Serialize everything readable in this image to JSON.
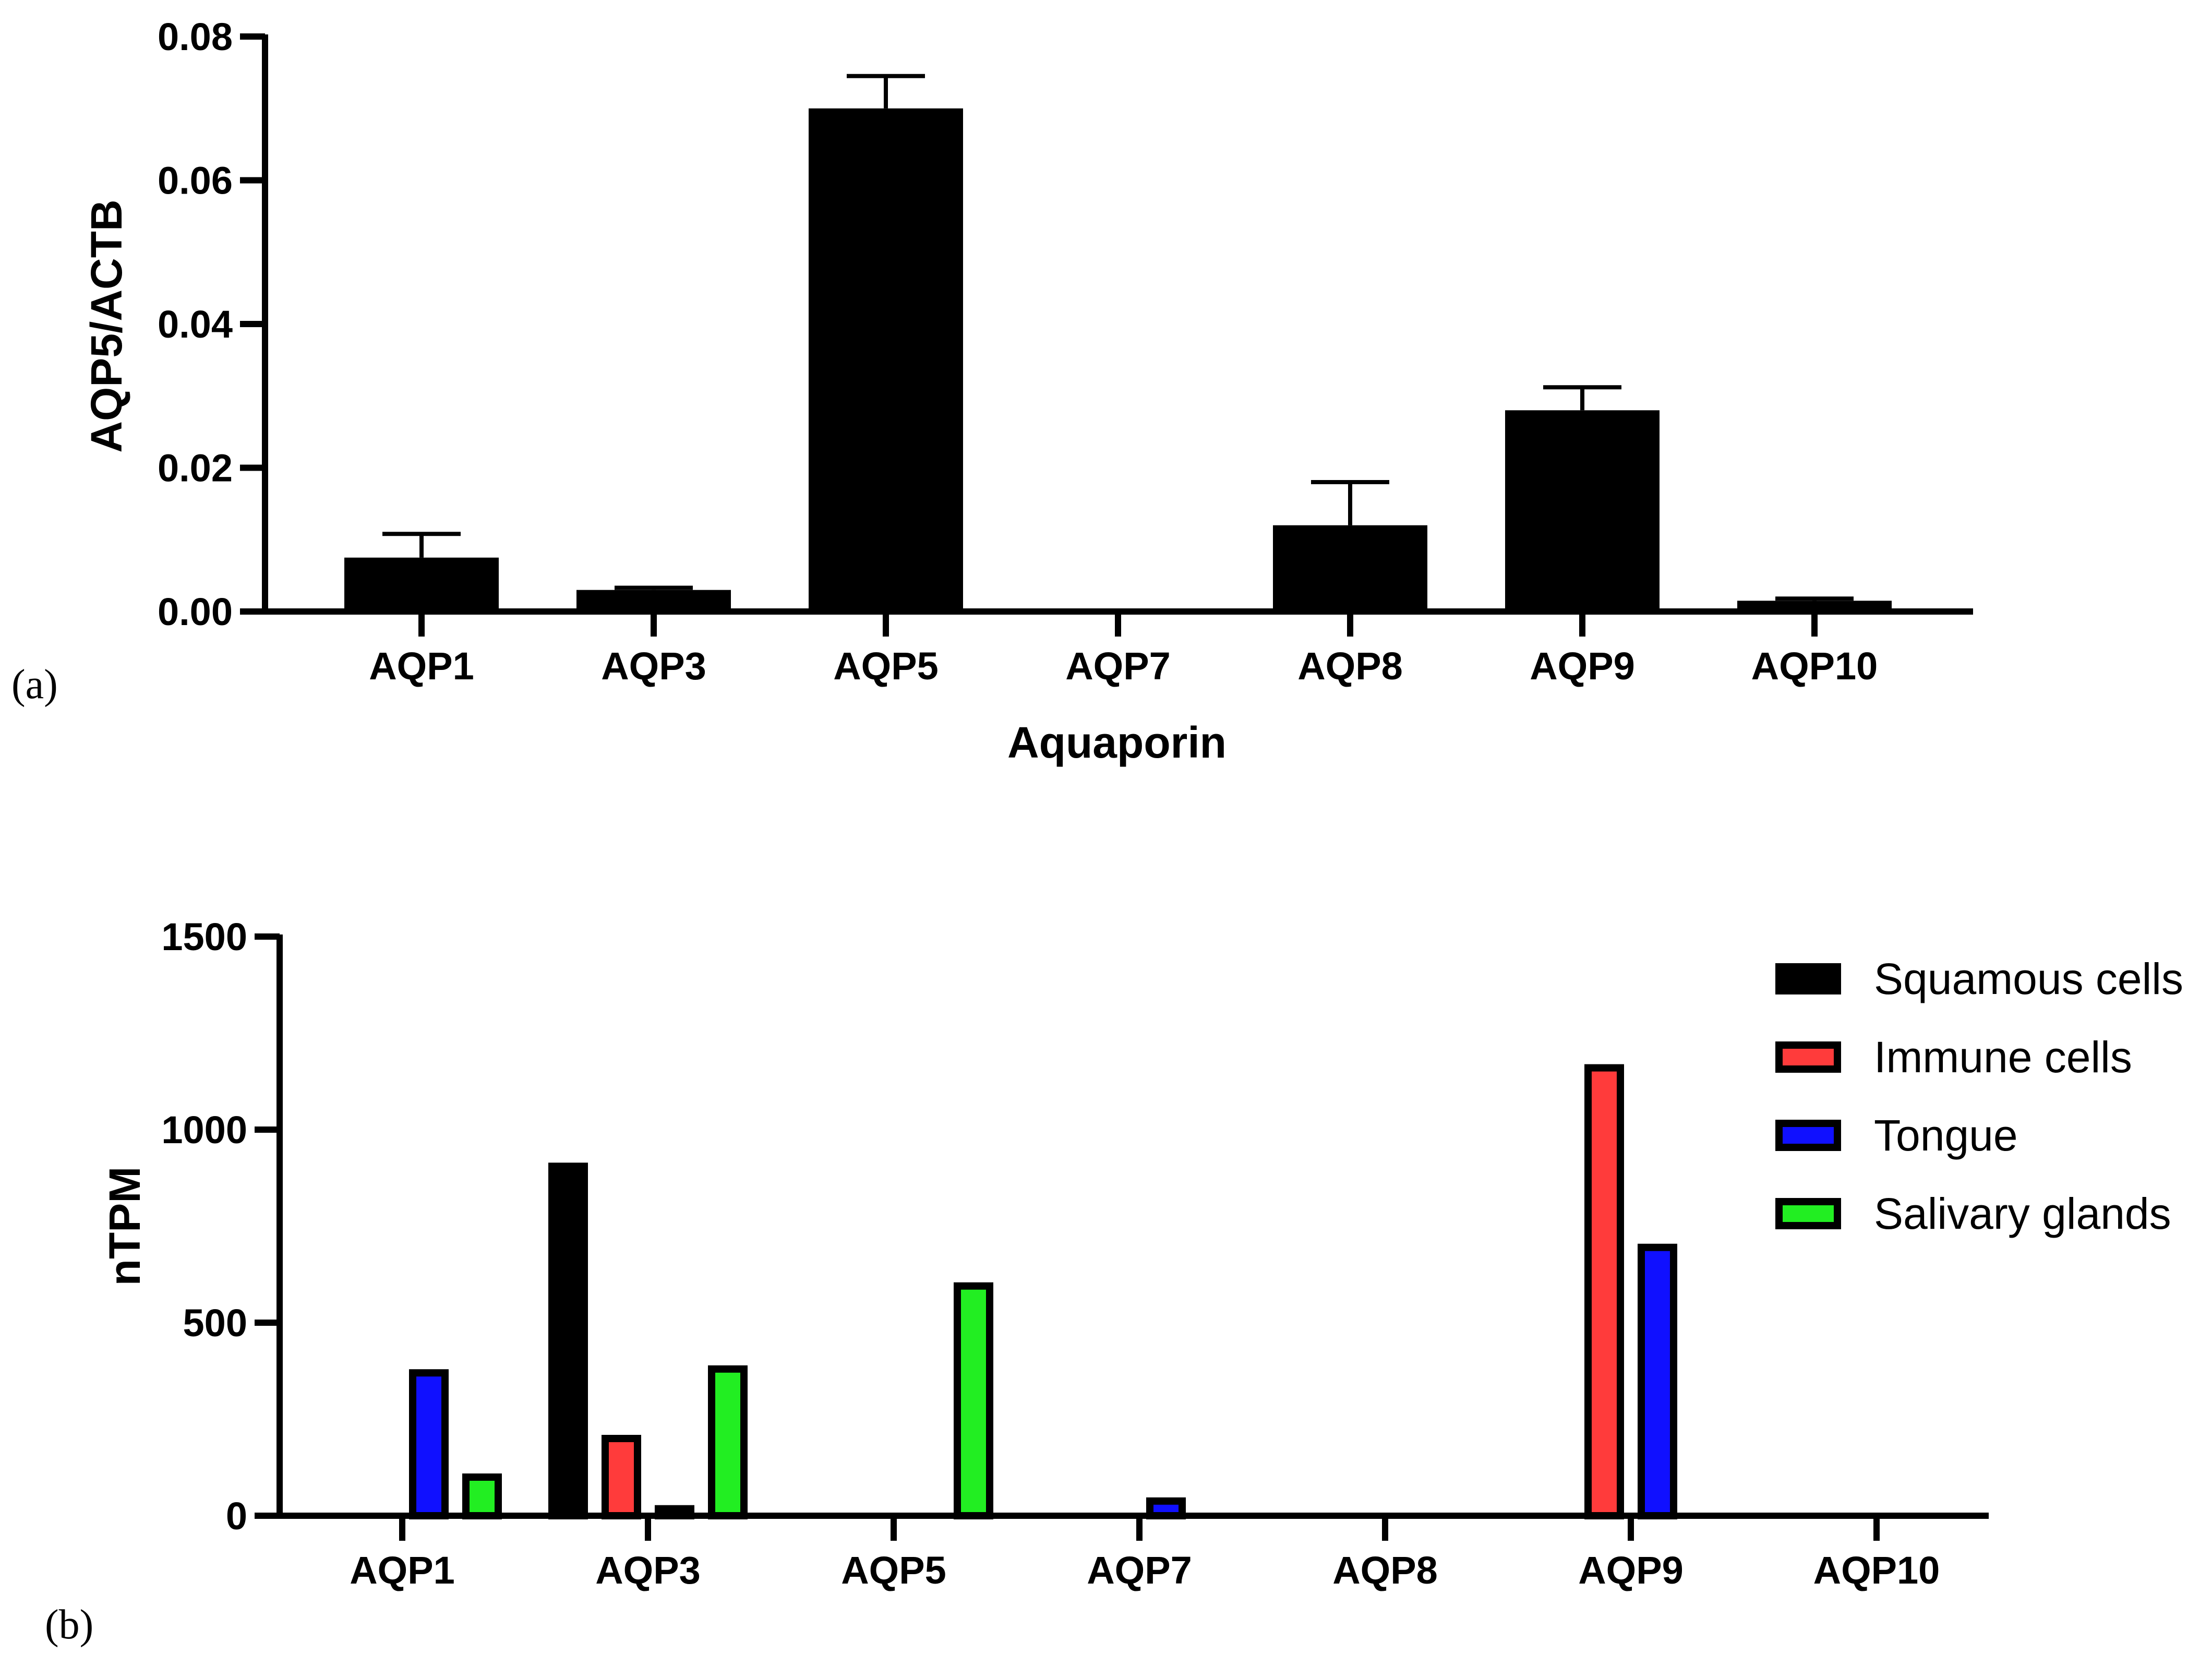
{
  "chart_data": [
    {
      "type": "bar",
      "panel_label": "(a)",
      "categories": [
        "AQP1",
        "AQP3",
        "AQP5",
        "AQP7",
        "AQP8",
        "AQP9",
        "AQP10"
      ],
      "values": [
        0.0075,
        0.003,
        0.07,
        0.0,
        0.012,
        0.028,
        0.0015
      ],
      "error_upper": [
        0.0108,
        0.0033,
        0.0745,
        0.0,
        0.018,
        0.0312,
        0.0018
      ],
      "xlabel": "Aquaporin",
      "ylabel": "AQP5/ACTB",
      "ylim": [
        0,
        0.08
      ],
      "yticks": [
        "0.00",
        "0.02",
        "0.04",
        "0.06",
        "0.08"
      ],
      "color": "#000000",
      "grid": false
    },
    {
      "type": "bar",
      "panel_label": "(b)",
      "categories": [
        "AQP1",
        "AQP3",
        "AQP5",
        "AQP7",
        "AQP8",
        "AQP9",
        "AQP10"
      ],
      "series": [
        {
          "name": "Squamous cells",
          "color": "#000000",
          "values": [
            0,
            905,
            0,
            0,
            0,
            0,
            0
          ]
        },
        {
          "name": "Immune cells",
          "color": "#ff3b3b",
          "values": [
            0,
            200,
            0,
            0,
            0,
            1160,
            0
          ]
        },
        {
          "name": "Tongue",
          "color": "#1010ff",
          "values": [
            370,
            18,
            0,
            38,
            0,
            695,
            0
          ]
        },
        {
          "name": "Salivary glands",
          "color": "#22ee22",
          "values": [
            100,
            380,
            595,
            0,
            0,
            0,
            0
          ]
        }
      ],
      "xlabel": "",
      "ylabel": "nTPM",
      "ylim": [
        0,
        1500
      ],
      "yticks": [
        "0",
        "500",
        "1000",
        "1500"
      ],
      "legend_position": "top-right",
      "grid": false
    }
  ]
}
